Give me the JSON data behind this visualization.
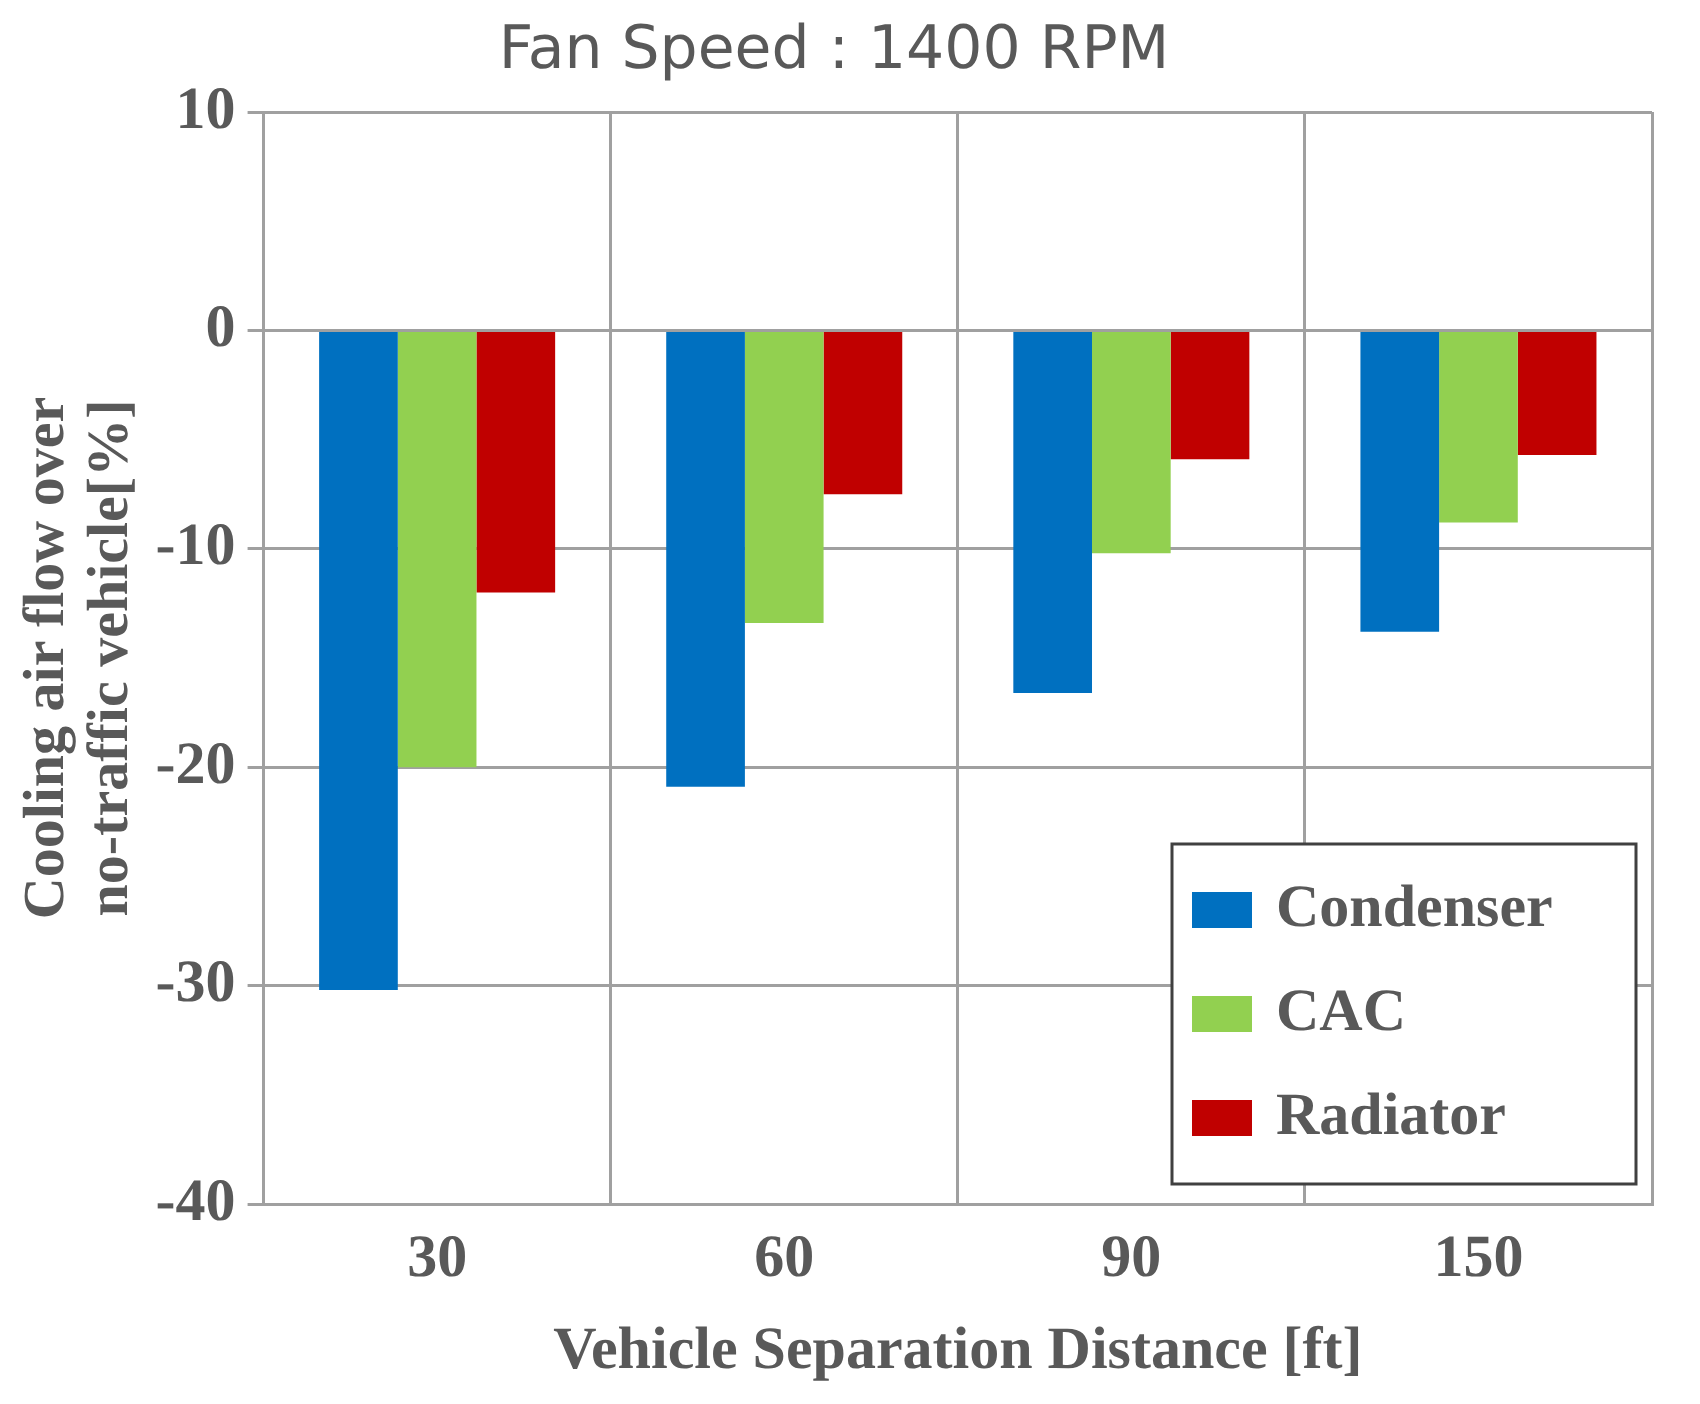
{
  "chart_data": {
    "type": "bar",
    "title": "Fan Speed : 1400 RPM",
    "xlabel": "Vehicle Separation Distance [ft]",
    "ylabel": "Cooling air flow over no-traffic vehicle[%]",
    "categories": [
      "30",
      "60",
      "90",
      "150"
    ],
    "series": [
      {
        "name": "Condenser",
        "color": "#0070c0",
        "values": [
          -30.2,
          -20.9,
          -16.6,
          -13.8
        ]
      },
      {
        "name": "CAC",
        "color": "#92d050",
        "values": [
          -20.0,
          -13.4,
          -10.2,
          -8.8
        ]
      },
      {
        "name": "Radiator",
        "color": "#c00000",
        "values": [
          -12.0,
          -7.5,
          -5.9,
          -5.7
        ]
      }
    ],
    "ylim": [
      -40,
      10
    ],
    "yticks": [
      -40,
      -30,
      -20,
      -10,
      0,
      10
    ],
    "grid": true,
    "legend": "bottom right"
  }
}
